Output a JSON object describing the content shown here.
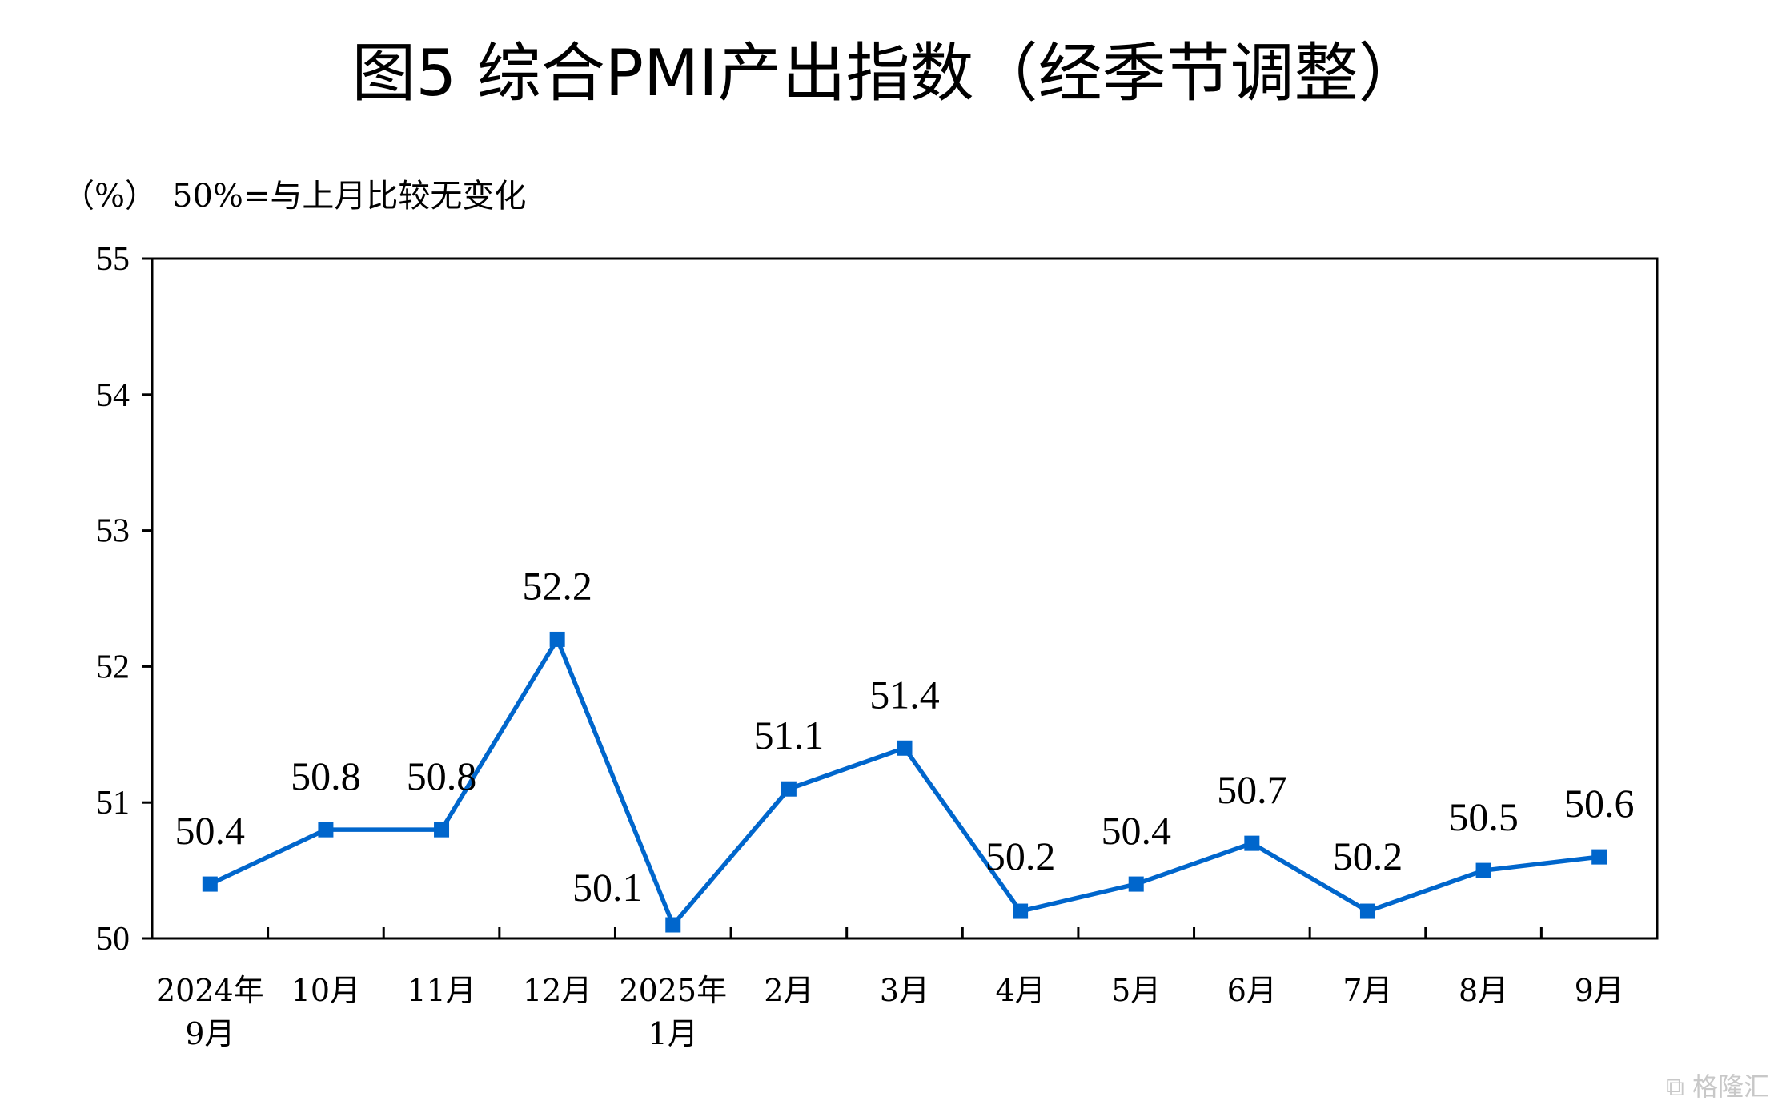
{
  "chart_data": {
    "type": "line",
    "title": "图5  综合PMI产出指数（经季节调整）",
    "unit": "（%）",
    "note": "50%=与上月比较无变化",
    "categories": [
      [
        "2024年",
        "9月"
      ],
      [
        "10月"
      ],
      [
        "11月"
      ],
      [
        "12月"
      ],
      [
        "2025年",
        "1月"
      ],
      [
        "2月"
      ],
      [
        "3月"
      ],
      [
        "4月"
      ],
      [
        "5月"
      ],
      [
        "6月"
      ],
      [
        "7月"
      ],
      [
        "8月"
      ],
      [
        "9月"
      ]
    ],
    "series": [
      {
        "values": [
          50.4,
          50.8,
          50.8,
          52.2,
          50.1,
          51.1,
          51.4,
          50.2,
          50.4,
          50.7,
          50.2,
          50.5,
          50.6
        ]
      }
    ],
    "ylim": [
      50,
      55
    ],
    "yticks": [
      50,
      51,
      52,
      53,
      54,
      55
    ],
    "grid": false,
    "line_color": "#0066CC"
  },
  "watermark": "格隆汇"
}
